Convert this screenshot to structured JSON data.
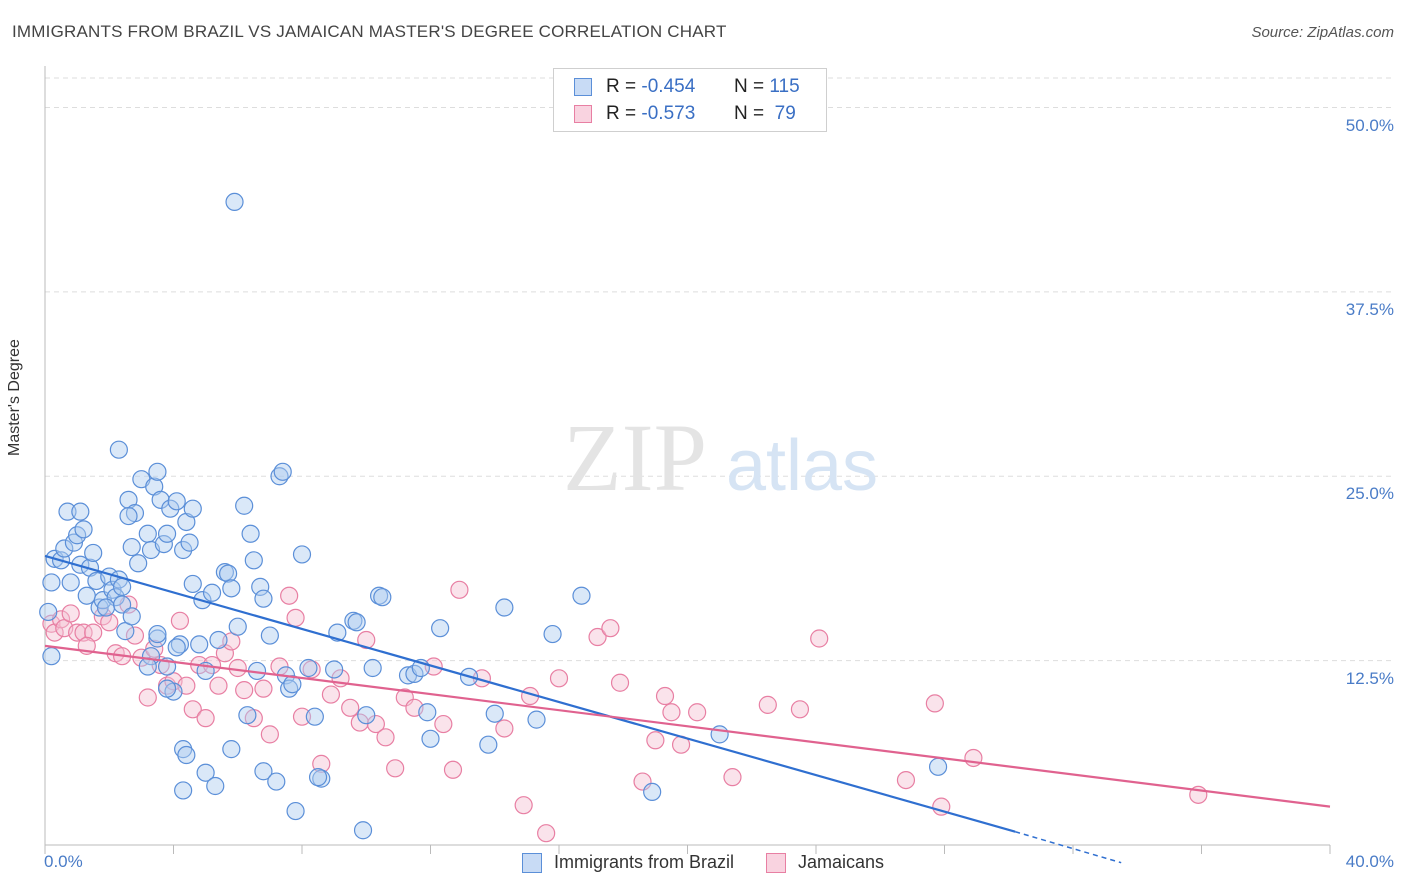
{
  "title": "IMMIGRANTS FROM BRAZIL VS JAMAICAN MASTER'S DEGREE CORRELATION CHART",
  "source": "Source: ZipAtlas.com",
  "watermark": {
    "zip": "ZIP",
    "atlas": "atlas"
  },
  "colors": {
    "blue": "#5b8fd8",
    "blue_fill": "#aecbf0",
    "pink": "#e87fa3",
    "pink_fill": "#f5c0d2",
    "blue_line": "#2f6fd0",
    "pink_line": "#e0628f",
    "tick_text": "#4a7cc7"
  },
  "legend_top": {
    "rows": [
      {
        "r_label": "R =",
        "r_value": "-0.454",
        "n_label": "N =",
        "n_value": "115"
      },
      {
        "r_label": "R =",
        "r_value": "-0.573",
        "n_label": "N =",
        "n_value": "79"
      }
    ]
  },
  "chart_data": {
    "type": "scatter",
    "title": "IMMIGRANTS FROM BRAZIL VS JAMAICAN MASTER'S DEGREE CORRELATION CHART",
    "xlabel": "",
    "ylabel": "Master's Degree",
    "xlim": [
      0,
      40
    ],
    "ylim": [
      0,
      52
    ],
    "x_tick_labels": [
      "0.0%",
      "40.0%"
    ],
    "y_ticks": [
      12.5,
      25.0,
      37.5,
      50.0
    ],
    "y_tick_labels": [
      "12.5%",
      "25.0%",
      "37.5%",
      "50.0%"
    ],
    "grid": true,
    "legend_position": "bottom",
    "series": [
      {
        "name": "Immigrants from Brazil",
        "r": -0.454,
        "n": 115,
        "trend": {
          "x": [
            0,
            30.2
          ],
          "y": [
            19.6,
            0.9
          ],
          "dashed_to": [
            33.5,
            -1.2
          ]
        },
        "points": [
          [
            0.3,
            19.4
          ],
          [
            0.2,
            17.8
          ],
          [
            0.1,
            15.8
          ],
          [
            0.2,
            12.8
          ],
          [
            0.5,
            19.3
          ],
          [
            0.6,
            20.1
          ],
          [
            0.7,
            22.6
          ],
          [
            0.8,
            17.8
          ],
          [
            0.9,
            20.5
          ],
          [
            1.0,
            21.0
          ],
          [
            1.1,
            19.0
          ],
          [
            1.2,
            21.4
          ],
          [
            1.3,
            16.9
          ],
          [
            1.4,
            18.8
          ],
          [
            1.5,
            19.8
          ],
          [
            1.6,
            17.9
          ],
          [
            1.7,
            16.1
          ],
          [
            1.8,
            16.6
          ],
          [
            2.0,
            18.2
          ],
          [
            2.1,
            17.3
          ],
          [
            2.2,
            16.8
          ],
          [
            2.3,
            18.0
          ],
          [
            2.4,
            17.5
          ],
          [
            2.5,
            14.5
          ],
          [
            2.6,
            23.4
          ],
          [
            2.7,
            20.2
          ],
          [
            2.8,
            22.5
          ],
          [
            2.9,
            19.1
          ],
          [
            3.0,
            24.8
          ],
          [
            3.2,
            21.1
          ],
          [
            3.3,
            20.0
          ],
          [
            3.4,
            24.3
          ],
          [
            3.5,
            25.3
          ],
          [
            3.6,
            23.4
          ],
          [
            3.7,
            20.4
          ],
          [
            3.8,
            21.1
          ],
          [
            3.9,
            22.8
          ],
          [
            4.1,
            23.3
          ],
          [
            4.3,
            20.0
          ],
          [
            4.4,
            21.9
          ],
          [
            4.5,
            20.5
          ],
          [
            4.6,
            22.8
          ],
          [
            3.3,
            12.8
          ],
          [
            3.5,
            14.0
          ],
          [
            3.8,
            12.1
          ],
          [
            4.0,
            10.4
          ],
          [
            4.2,
            13.6
          ],
          [
            4.3,
            6.5
          ],
          [
            4.4,
            6.1
          ],
          [
            4.6,
            17.7
          ],
          [
            4.8,
            13.6
          ],
          [
            4.9,
            16.6
          ],
          [
            5.0,
            11.8
          ],
          [
            5.2,
            17.1
          ],
          [
            5.4,
            13.9
          ],
          [
            5.6,
            18.5
          ],
          [
            5.7,
            18.4
          ],
          [
            5.8,
            17.4
          ],
          [
            6.0,
            14.8
          ],
          [
            6.2,
            23.0
          ],
          [
            6.4,
            21.1
          ],
          [
            6.5,
            19.3
          ],
          [
            6.7,
            17.5
          ],
          [
            6.8,
            16.7
          ],
          [
            7.0,
            14.2
          ],
          [
            7.3,
            25.0
          ],
          [
            7.4,
            25.3
          ],
          [
            7.5,
            11.5
          ],
          [
            7.6,
            10.6
          ],
          [
            7.7,
            10.9
          ],
          [
            8.0,
            19.7
          ],
          [
            8.2,
            12.0
          ],
          [
            8.4,
            8.7
          ],
          [
            8.6,
            4.5
          ],
          [
            9.1,
            14.4
          ],
          [
            9.6,
            15.2
          ],
          [
            9.7,
            15.1
          ],
          [
            10.0,
            8.8
          ],
          [
            10.4,
            16.9
          ],
          [
            10.5,
            16.8
          ],
          [
            11.3,
            11.5
          ],
          [
            11.5,
            11.6
          ],
          [
            11.7,
            12.0
          ],
          [
            11.9,
            9.0
          ],
          [
            12.0,
            7.2
          ],
          [
            12.3,
            14.7
          ],
          [
            13.2,
            11.4
          ],
          [
            14.0,
            8.9
          ],
          [
            14.3,
            16.1
          ],
          [
            15.3,
            8.5
          ],
          [
            15.8,
            14.3
          ],
          [
            16.7,
            16.9
          ],
          [
            2.6,
            22.3
          ],
          [
            1.1,
            22.6
          ],
          [
            2.3,
            26.8
          ],
          [
            5.9,
            43.6
          ],
          [
            4.1,
            13.4
          ],
          [
            1.9,
            16.1
          ],
          [
            2.4,
            16.3
          ],
          [
            3.8,
            10.6
          ],
          [
            4.3,
            3.7
          ],
          [
            5.0,
            4.9
          ],
          [
            5.3,
            4.0
          ],
          [
            5.8,
            6.5
          ],
          [
            6.3,
            8.8
          ],
          [
            6.8,
            5.0
          ],
          [
            7.2,
            4.3
          ],
          [
            7.8,
            2.3
          ],
          [
            8.5,
            4.6
          ],
          [
            9.9,
            1.0
          ],
          [
            3.5,
            14.3
          ],
          [
            2.7,
            15.5
          ],
          [
            3.2,
            12.1
          ],
          [
            6.6,
            11.8
          ],
          [
            10.2,
            12.0
          ],
          [
            13.8,
            6.8
          ],
          [
            18.9,
            3.6
          ],
          [
            21.0,
            7.5
          ],
          [
            27.8,
            5.3
          ],
          [
            9.0,
            11.9
          ]
        ]
      },
      {
        "name": "Jamaicans",
        "r": -0.573,
        "n": 79,
        "trend": {
          "x": [
            0,
            40
          ],
          "y": [
            13.5,
            2.6
          ]
        },
        "points": [
          [
            0.2,
            15.0
          ],
          [
            0.3,
            14.4
          ],
          [
            0.5,
            15.3
          ],
          [
            0.6,
            14.7
          ],
          [
            0.8,
            15.7
          ],
          [
            1.0,
            14.4
          ],
          [
            1.2,
            14.4
          ],
          [
            1.5,
            14.4
          ],
          [
            1.8,
            15.5
          ],
          [
            2.0,
            15.1
          ],
          [
            2.2,
            13.0
          ],
          [
            2.4,
            12.8
          ],
          [
            2.6,
            16.3
          ],
          [
            2.8,
            14.2
          ],
          [
            3.0,
            12.7
          ],
          [
            3.2,
            10.0
          ],
          [
            3.4,
            13.3
          ],
          [
            3.6,
            12.2
          ],
          [
            3.8,
            10.8
          ],
          [
            4.0,
            11.1
          ],
          [
            4.2,
            15.2
          ],
          [
            4.4,
            10.8
          ],
          [
            4.6,
            9.2
          ],
          [
            4.8,
            12.2
          ],
          [
            5.0,
            8.6
          ],
          [
            5.2,
            12.2
          ],
          [
            5.4,
            10.8
          ],
          [
            5.6,
            13.0
          ],
          [
            5.8,
            13.8
          ],
          [
            6.0,
            12.0
          ],
          [
            6.2,
            10.5
          ],
          [
            6.5,
            8.6
          ],
          [
            6.8,
            10.6
          ],
          [
            7.0,
            7.5
          ],
          [
            7.3,
            12.1
          ],
          [
            7.6,
            16.9
          ],
          [
            7.8,
            15.4
          ],
          [
            8.0,
            8.7
          ],
          [
            8.3,
            11.9
          ],
          [
            8.6,
            5.5
          ],
          [
            8.9,
            10.2
          ],
          [
            9.2,
            11.3
          ],
          [
            9.5,
            9.3
          ],
          [
            9.8,
            8.3
          ],
          [
            10.0,
            13.9
          ],
          [
            10.3,
            8.2
          ],
          [
            10.6,
            7.3
          ],
          [
            10.9,
            5.2
          ],
          [
            11.2,
            10.0
          ],
          [
            11.5,
            9.3
          ],
          [
            12.1,
            12.1
          ],
          [
            12.4,
            8.2
          ],
          [
            12.7,
            5.1
          ],
          [
            12.9,
            17.3
          ],
          [
            13.6,
            11.3
          ],
          [
            14.3,
            7.9
          ],
          [
            14.9,
            2.7
          ],
          [
            15.1,
            10.1
          ],
          [
            15.6,
            0.8
          ],
          [
            16.0,
            11.3
          ],
          [
            17.2,
            14.1
          ],
          [
            17.6,
            14.7
          ],
          [
            17.9,
            11.0
          ],
          [
            19.0,
            7.1
          ],
          [
            19.3,
            10.1
          ],
          [
            19.5,
            9.0
          ],
          [
            19.8,
            6.8
          ],
          [
            20.3,
            9.0
          ],
          [
            21.4,
            4.6
          ],
          [
            22.5,
            9.5
          ],
          [
            23.5,
            9.2
          ],
          [
            24.1,
            14.0
          ],
          [
            26.8,
            4.4
          ],
          [
            27.7,
            9.6
          ],
          [
            27.9,
            2.6
          ],
          [
            28.9,
            5.9
          ],
          [
            35.9,
            3.4
          ],
          [
            18.6,
            4.3
          ],
          [
            1.3,
            13.5
          ]
        ]
      }
    ]
  },
  "legend_bottom": {
    "items": [
      "Immigrants from Brazil",
      "Jamaicans"
    ]
  }
}
